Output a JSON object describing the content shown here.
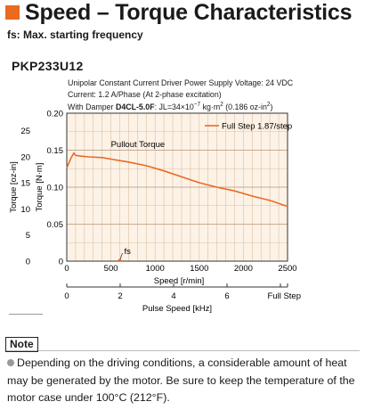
{
  "header": {
    "title": "Speed – Torque Characteristics",
    "subtitle": "fs: Max. starting frequency"
  },
  "model": "PKP233U12",
  "conditions": {
    "line1": "Unipolar Constant Current Driver  Power Supply Voltage: 24 VDC",
    "line2": "Current: 1.2 A/Phase (At 2-phase excitation)",
    "line3_prefix": "With Damper ",
    "line3_damper": "D4CL-5.0F",
    "line3_inertia": ": JL=34×10",
    "line3_exp1": "−7",
    "line3_unit": " kg·m",
    "line3_exp2": "2",
    "line3_paren": " (0.186 oz-in",
    "line3_exp3": "2",
    "line3_close": ")"
  },
  "chart_data": {
    "type": "line",
    "title": "",
    "xlabel": "Speed [r/min]",
    "x2label": "Pulse Speed [kHz]",
    "ylabel_left_outer": "Torque [oz-in]",
    "ylabel_left_inner": "Torque [N·m]",
    "xlim": [
      0,
      2500
    ],
    "ylim": [
      0,
      0.2
    ],
    "x_ticks": [
      "0",
      "500",
      "1000",
      "1500",
      "2000",
      "2500"
    ],
    "x2_ticks": [
      "0",
      "2",
      "4",
      "6"
    ],
    "x2_end_label": "Full Step",
    "y_ticks": [
      "0",
      "0.05",
      "0.10",
      "0.15",
      "0.20"
    ],
    "y_oz_ticks": [
      "0",
      "5",
      "10",
      "15",
      "20",
      "25"
    ],
    "grid": true,
    "legend": "top-right",
    "series": [
      {
        "name": "Full Step 1.87/step",
        "color": "#ec6a24",
        "x": [
          0,
          25,
          50,
          80,
          100,
          150,
          250,
          400,
          500,
          700,
          900,
          1100,
          1300,
          1500,
          1700,
          1900,
          2100,
          2300,
          2500
        ],
        "y": [
          0.126,
          0.133,
          0.14,
          0.146,
          0.143,
          0.142,
          0.141,
          0.14,
          0.138,
          0.134,
          0.129,
          0.122,
          0.114,
          0.106,
          0.1,
          0.095,
          0.088,
          0.082,
          0.074
        ]
      }
    ],
    "annotations": {
      "pullout": "Pullout Torque",
      "fs": "fs",
      "fs_speed": 600
    }
  },
  "note": {
    "label": "Note",
    "text": "Depending on the driving conditions, a considerable amount of heat may be generated by the motor. Be sure to keep the temperature of the motor case under 100°C (212°F)."
  }
}
